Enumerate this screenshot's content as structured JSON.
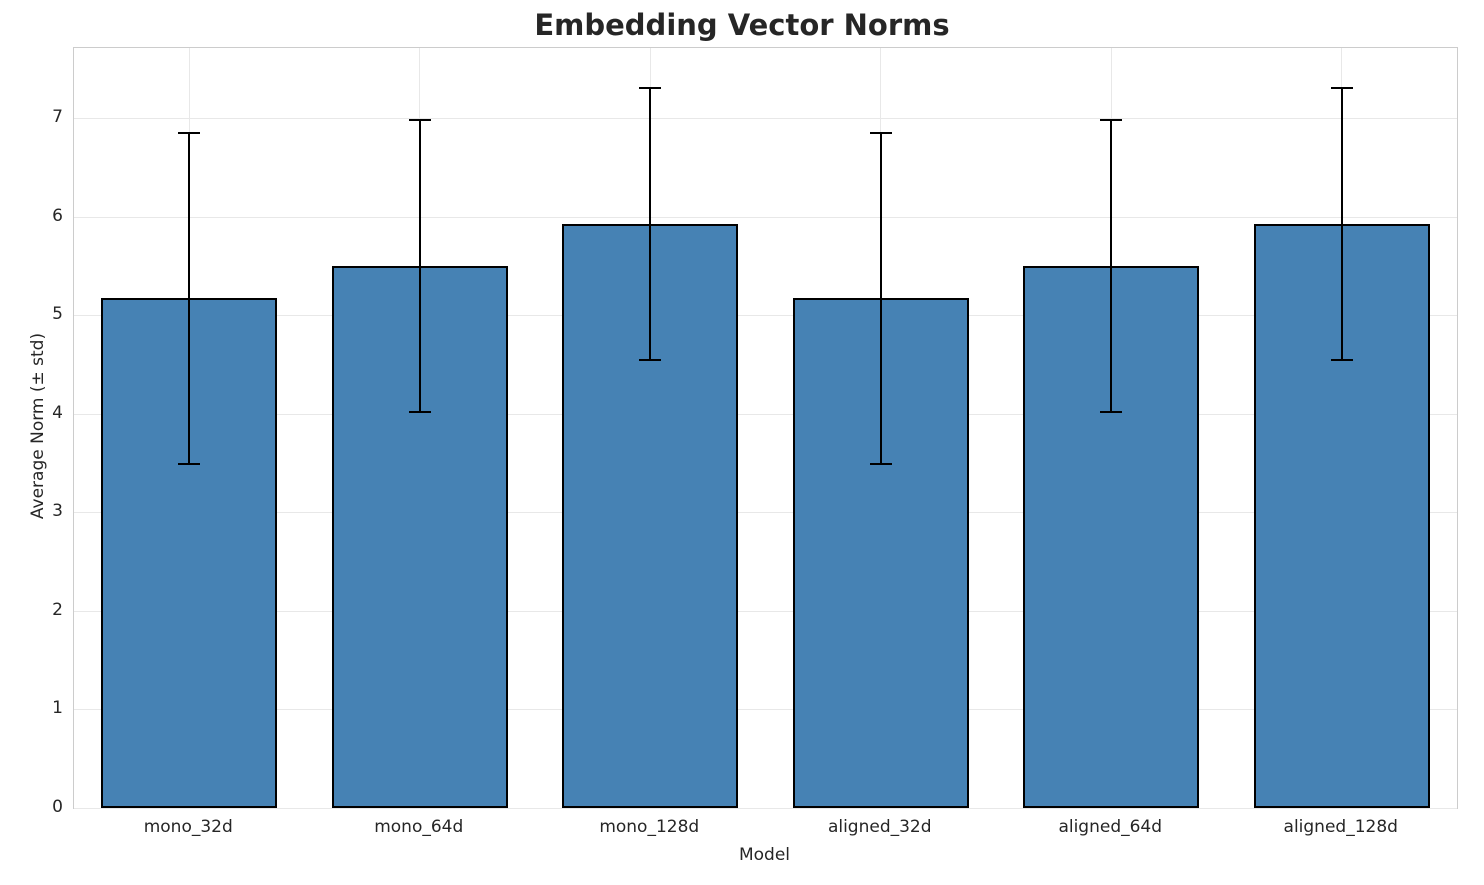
{
  "chart_data": {
    "type": "bar",
    "title": "Embedding Vector Norms",
    "xlabel": "Model",
    "ylabel": "Average Norm (± std)",
    "categories": [
      "mono_32d",
      "mono_64d",
      "mono_128d",
      "aligned_32d",
      "aligned_64d",
      "aligned_128d"
    ],
    "values": [
      5.17,
      5.5,
      5.92,
      5.17,
      5.5,
      5.92
    ],
    "errors": [
      1.68,
      1.48,
      1.38,
      1.68,
      1.48,
      1.38
    ],
    "yticks": [
      0,
      1,
      2,
      3,
      4,
      5,
      6,
      7
    ],
    "ylim": [
      0,
      7.71
    ],
    "grid": "both",
    "legend_position": "none",
    "bar_color": "#4682b4",
    "bar_edge_color": "#000000",
    "error_color": "#000000",
    "grid_color": "#e8e8e8",
    "spine_color": "#cccccc",
    "text_color": "#262626",
    "background": "#ffffff"
  }
}
